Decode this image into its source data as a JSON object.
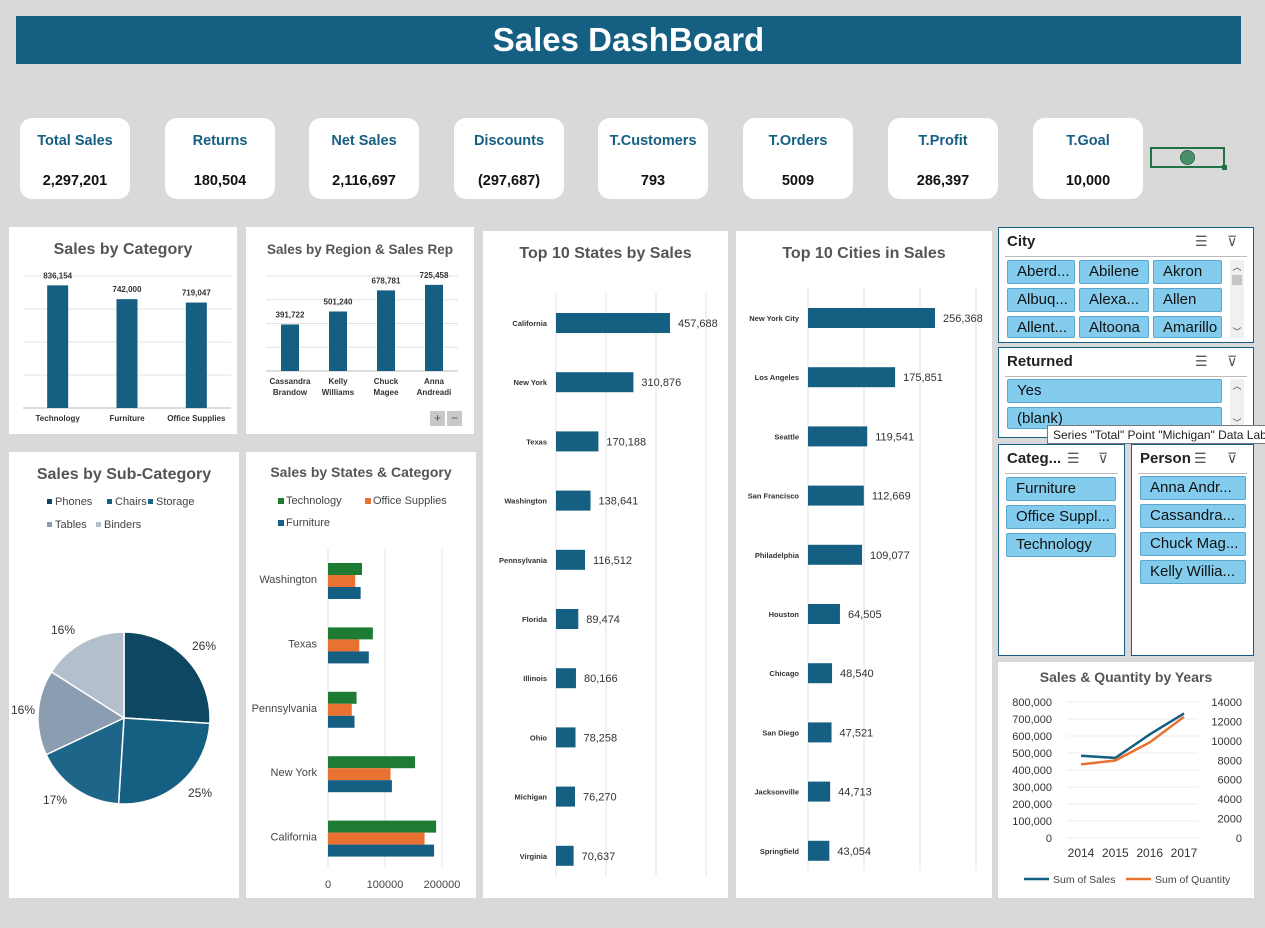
{
  "dashboard": {
    "title": "Sales DashBoard"
  },
  "kpis": [
    {
      "label": "Total Sales",
      "value": "2,297,201"
    },
    {
      "label": "Returns",
      "value": "180,504"
    },
    {
      "label": "Net Sales",
      "value": "2,116,697"
    },
    {
      "label": "Discounts",
      "value": "(297,687)"
    },
    {
      "label": "T.Customers",
      "value": "793"
    },
    {
      "label": "T.Orders",
      "value": "5009"
    },
    {
      "label": "T.Profit",
      "value": "286,397"
    },
    {
      "label": "T.Goal",
      "value": "10,000"
    }
  ],
  "colors": {
    "primary": "#155f82",
    "dark": "#0e4762",
    "green": "#1e7b34",
    "orange": "#e97132",
    "gray": "#8b9db0",
    "lightgray": "#b3bfcc",
    "slicer": "#83ccee"
  },
  "chart_data": [
    {
      "id": "category",
      "type": "bar",
      "title": "Sales by Category",
      "categories": [
        "Technology",
        "Furniture",
        "Office Supplies"
      ],
      "values": [
        836154,
        742000,
        719047
      ],
      "labels": [
        "836,154",
        "742,000",
        "719,047"
      ]
    },
    {
      "id": "region",
      "type": "bar",
      "title": "Sales by Region & Sales Rep",
      "categories": [
        [
          "Cassandra",
          "Brandow"
        ],
        [
          "Kelly",
          "Williams"
        ],
        [
          "Chuck",
          "Magee"
        ],
        [
          "Anna",
          "Andreadi"
        ]
      ],
      "values": [
        391722,
        501240,
        678781,
        725458
      ],
      "labels": [
        "391,722",
        "501,240",
        "678,781",
        "725,458"
      ]
    },
    {
      "id": "states",
      "type": "bar",
      "orientation": "horizontal",
      "title": "Top 10 States by Sales",
      "categories": [
        "California",
        "New York",
        "Texas",
        "Washington",
        "Pennsylvania",
        "Florida",
        "Illinois",
        "Ohio",
        "Michigan",
        "Virginia"
      ],
      "values": [
        457688,
        310876,
        170188,
        138641,
        116512,
        89474,
        80166,
        78258,
        76270,
        70637
      ],
      "labels": [
        "457,688",
        "310,876",
        "170,188",
        "138,641",
        "116,512",
        "89,474",
        "80,166",
        "78,258",
        "76,270",
        "70,637"
      ]
    },
    {
      "id": "cities",
      "type": "bar",
      "orientation": "horizontal",
      "title": "Top 10 Cities in Sales",
      "categories": [
        "New York City",
        "Los Angeles",
        "Seattle",
        "San Francisco",
        "Philadelphia",
        "Houston",
        "Chicago",
        "San Diego",
        "Jacksonville",
        "Springfield"
      ],
      "values": [
        256368,
        175851,
        119541,
        112669,
        109077,
        64505,
        48540,
        47521,
        44713,
        43054
      ],
      "labels": [
        "256,368",
        "175,851",
        "119,541",
        "112,669",
        "109,077",
        "64,505",
        "48,540",
        "47,521",
        "44,713",
        "43,054"
      ]
    },
    {
      "id": "subcat",
      "type": "pie",
      "title": "Sales by Sub-Category",
      "legend": [
        "Phones",
        "Chairs",
        "Storage",
        "Tables",
        "Binders"
      ],
      "values": [
        26,
        25,
        17,
        16,
        16
      ],
      "labels": [
        "26%",
        "25%",
        "17%",
        "16%",
        "16%"
      ]
    },
    {
      "id": "statecat",
      "type": "bar",
      "orientation": "horizontal",
      "title": "Sales by States & Category",
      "categories": [
        "Washington",
        "Texas",
        "Pennsylvania",
        "New York",
        "California"
      ],
      "series": [
        {
          "name": "Technology",
          "values": [
            50000,
            66000,
            42000,
            128000,
            159000
          ]
        },
        {
          "name": "Office Supplies",
          "values": [
            40000,
            46000,
            35000,
            92000,
            142000
          ]
        },
        {
          "name": "Furniture",
          "values": [
            48000,
            60000,
            39000,
            94000,
            156000
          ]
        }
      ],
      "xticks": [
        "0",
        "100000",
        "200000"
      ],
      "xlim": [
        0,
        250000
      ]
    },
    {
      "id": "years",
      "type": "line",
      "title": "Sales & Quantity by Years",
      "x": [
        "2014",
        "2015",
        "2016",
        "2017"
      ],
      "series": [
        {
          "name": "Sum of Sales",
          "values": [
            484000,
            471000,
            609000,
            733000
          ],
          "axis": "left"
        },
        {
          "name": "Sum of Quantity",
          "values": [
            7581,
            7979,
            9837,
            12476
          ],
          "axis": "right"
        }
      ],
      "yticks_left": [
        "800,000",
        "700,000",
        "600,000",
        "500,000",
        "400,000",
        "300,000",
        "200,000",
        "100,000",
        "0"
      ],
      "yticks_right": [
        "14000",
        "12000",
        "10000",
        "8000",
        "6000",
        "4000",
        "2000",
        "0"
      ],
      "ylim_left": [
        0,
        800000
      ],
      "ylim_right": [
        0,
        14000
      ]
    }
  ],
  "slicers": {
    "city": {
      "title": "City",
      "items": [
        "Aberd...",
        "Abilene",
        "Akron",
        "Albuq...",
        "Alexa...",
        "Allen",
        "Allent...",
        "Altoona",
        "Amarillo"
      ]
    },
    "returned": {
      "title": "Returned",
      "items": [
        "Yes",
        "(blank)"
      ]
    },
    "category": {
      "title": "Categ...",
      "items": [
        "Furniture",
        "Office Suppl...",
        "Technology"
      ]
    },
    "person": {
      "title": "Person",
      "items": [
        "Anna Andr...",
        "Cassandra...",
        "Chuck Mag...",
        "Kelly Willia..."
      ]
    }
  },
  "tooltip": "Series \"Total\" Point \"Michigan\" Data Labels",
  "controls": {
    "expand": "+",
    "collapse": "−"
  }
}
